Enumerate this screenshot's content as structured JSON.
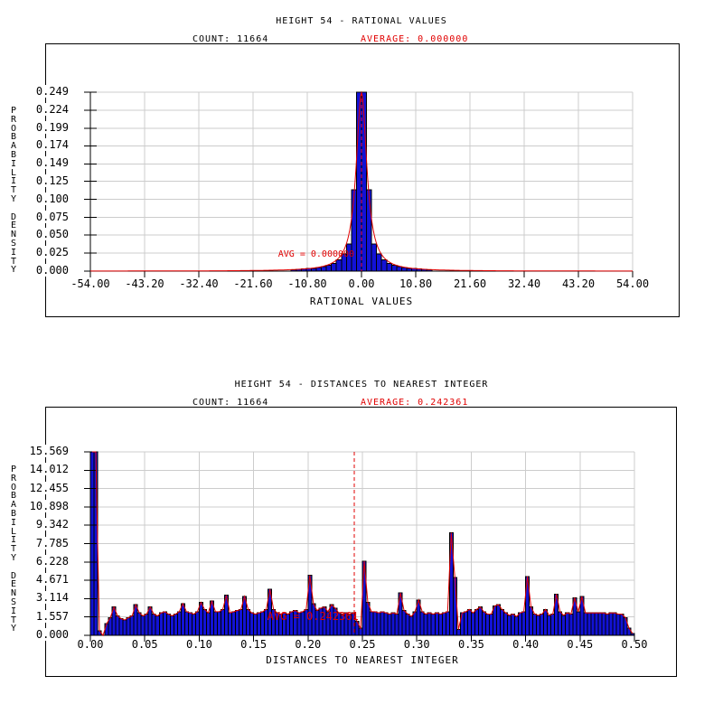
{
  "page": {
    "background": "#ffffff"
  },
  "colors": {
    "bar_fill": "#1212d6",
    "bar_stroke": "#000000",
    "curve_red": "#e10000",
    "grid_gray": "#cccccc",
    "axis_black": "#000000",
    "average_text_red": "#e10000"
  },
  "chart_data": [
    {
      "type": "bar",
      "title": "HEIGHT 54 - RATIONAL VALUES",
      "count_label": "COUNT: 11664",
      "average_label": "AVERAGE: 0.000000",
      "average_value": 0.0,
      "annotation": {
        "text": "AVG = 0.000000",
        "x": -16.6,
        "y": 0.02
      },
      "xlabel": "RATIONAL VALUES",
      "ylabel": "PROBABILITY DENSITY",
      "x_min": -54,
      "x_max": 54,
      "y_min": 0,
      "y_max": 0.249,
      "x_ticks": [
        "-54.00",
        "-43.20",
        "-32.40",
        "-21.60",
        "-10.80",
        "0.00",
        "10.80",
        "21.60",
        "32.40",
        "43.20",
        "54.00"
      ],
      "y_ticks": [
        "0.249",
        "0.224",
        "0.199",
        "0.174",
        "0.149",
        "0.125",
        "0.100",
        "0.075",
        "0.050",
        "0.025",
        "0.000"
      ],
      "bars": {
        "x_start": -54,
        "bin_width": 1,
        "n_bins": 108,
        "nonzero": {
          "40": 0.002,
          "41": 0.0025,
          "42": 0.003,
          "43": 0.0035,
          "44": 0.004,
          "45": 0.005,
          "46": 0.0065,
          "47": 0.008,
          "48": 0.011,
          "49": 0.0155,
          "50": 0.024,
          "51": 0.038,
          "52": 0.113,
          "53": 0.26,
          "54": 0.26,
          "55": 0.113,
          "56": 0.038,
          "57": 0.024,
          "58": 0.0155,
          "59": 0.011,
          "60": 0.008,
          "61": 0.0065,
          "62": 0.005,
          "63": 0.004,
          "64": 0.0035,
          "65": 0.003,
          "66": 0.0025,
          "67": 0.002
        }
      },
      "curve": {
        "type": "cauchy",
        "gamma": 1.28
      },
      "grid": true,
      "legend": null
    },
    {
      "type": "bar",
      "title": "HEIGHT 54 - DISTANCES TO NEAREST INTEGER",
      "count_label": "COUNT: 11664",
      "average_label": "AVERAGE: 0.242361",
      "average_value": 0.242361,
      "annotation": {
        "text": "AVG = 0.242361",
        "x": 0.1625,
        "y": 1.3
      },
      "xlabel": "DISTANCES TO NEAREST INTEGER",
      "ylabel": "PROBABILITY DENSITY",
      "x_min": 0,
      "x_max": 0.5,
      "y_min": 0,
      "y_max": 15.569,
      "x_ticks": [
        "0.00",
        "0.05",
        "0.10",
        "0.15",
        "0.20",
        "0.25",
        "0.30",
        "0.35",
        "0.40",
        "0.45",
        "0.50"
      ],
      "y_ticks": [
        "15.569",
        "14.012",
        "12.455",
        "10.898",
        "9.342",
        "7.785",
        "6.228",
        "4.671",
        "3.114",
        "1.557",
        "0.000"
      ],
      "bars": {
        "x_start": 0,
        "bin_width": 0.0033333,
        "n_bins": 150,
        "values": [
          16.5,
          16.5,
          0.4,
          0,
          1.0,
          1.5,
          2.4,
          1.65,
          1.4,
          1.3,
          1.5,
          1.65,
          2.6,
          1.9,
          1.65,
          1.8,
          2.4,
          1.8,
          1.65,
          1.9,
          2.0,
          1.8,
          1.65,
          1.8,
          2.0,
          2.7,
          2.0,
          1.9,
          1.8,
          2.0,
          2.8,
          2.2,
          1.9,
          2.9,
          2.0,
          2.0,
          2.2,
          3.4,
          1.9,
          2.0,
          2.1,
          2.2,
          3.3,
          2.2,
          1.9,
          1.8,
          1.9,
          2.0,
          2.2,
          3.9,
          2.2,
          1.9,
          1.8,
          1.9,
          1.8,
          2.0,
          2.1,
          1.9,
          2.0,
          2.2,
          5.1,
          2.7,
          2.1,
          2.3,
          2.4,
          2.0,
          2.6,
          2.3,
          1.9,
          1.8,
          1.9,
          1.8,
          1.9,
          1.2,
          0.6,
          6.3,
          2.8,
          2.0,
          2.0,
          1.9,
          2.0,
          1.9,
          1.8,
          1.9,
          1.8,
          3.6,
          2.1,
          1.8,
          1.6,
          2.0,
          3.0,
          2.0,
          1.8,
          1.9,
          1.8,
          1.9,
          1.8,
          1.9,
          2.0,
          8.7,
          4.9,
          0.5,
          1.9,
          2.0,
          2.2,
          1.9,
          2.2,
          2.4,
          2.0,
          1.8,
          1.8,
          2.5,
          2.6,
          2.2,
          1.9,
          1.7,
          1.8,
          1.6,
          1.9,
          2.0,
          5.0,
          2.4,
          1.8,
          1.7,
          1.8,
          2.2,
          1.7,
          1.8,
          3.5,
          2.0,
          1.7,
          1.9,
          1.8,
          3.2,
          2.0,
          3.3,
          1.9,
          1.9,
          1.9,
          1.9,
          1.9,
          1.9,
          1.8,
          1.9,
          1.9,
          1.8,
          1.8,
          1.5,
          0.6,
          0.15
        ]
      },
      "curve": {
        "type": "trace"
      },
      "grid": true,
      "legend": null
    }
  ]
}
